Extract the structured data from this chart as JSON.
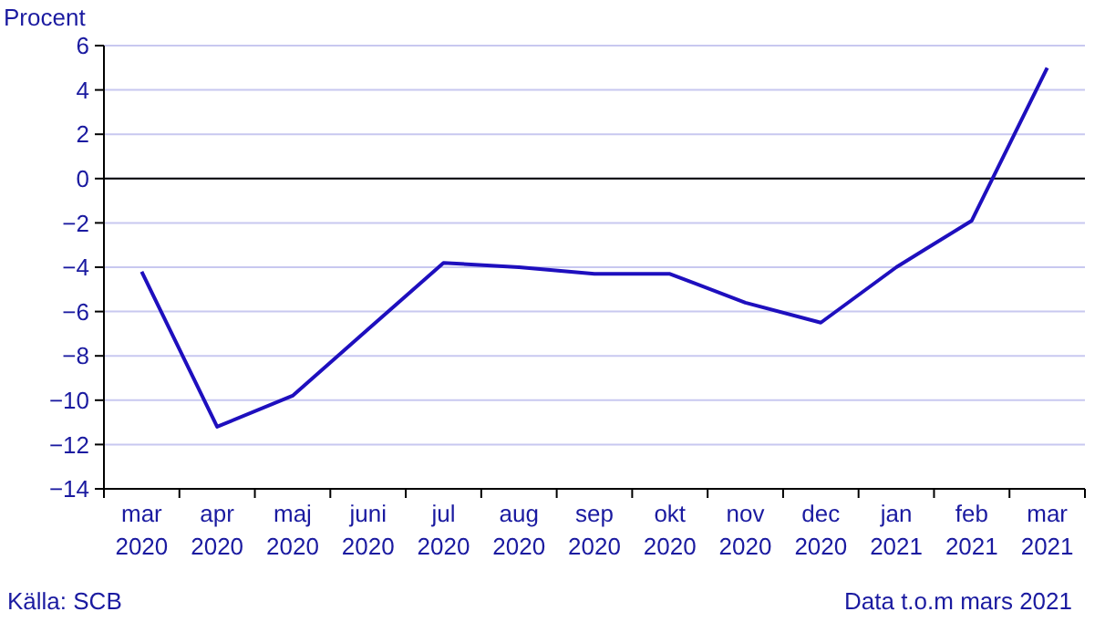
{
  "chart_data": {
    "type": "line",
    "ylabel": "Procent",
    "categories": [
      "mar 2020",
      "apr 2020",
      "maj 2020",
      "juni 2020",
      "jul 2020",
      "aug 2020",
      "sep 2020",
      "okt 2020",
      "nov 2020",
      "dec 2020",
      "jan 2021",
      "feb 2021",
      "mar 2021"
    ],
    "series": [
      {
        "color": "#1e0fbe",
        "values": [
          -4.2,
          -11.2,
          -9.8,
          -6.8,
          -3.8,
          -4.0,
          -4.3,
          -4.3,
          -5.6,
          -6.5,
          -4.0,
          -1.9,
          5.0
        ]
      }
    ],
    "ylim": [
      -14,
      6
    ],
    "yticks": [
      -14,
      -12,
      -10,
      -8,
      -6,
      -4,
      -2,
      0,
      2,
      4,
      6
    ],
    "grid": "y",
    "ref_lines": [
      {
        "axis": "y",
        "value": 0,
        "color": "#000000"
      }
    ],
    "annotations": [
      "Källa: SCB",
      "Data t.o.m mars 2021"
    ]
  }
}
